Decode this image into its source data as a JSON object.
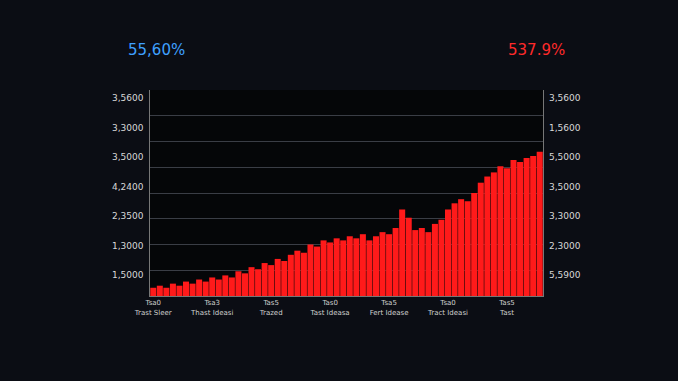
{
  "chart_data": {
    "type": "bar",
    "annotations": [
      {
        "text": "55,60%",
        "color": "#3fa0ff",
        "position": "top-left"
      },
      {
        "text": "537.9%",
        "color": "#ff2a2a",
        "position": "top-right"
      }
    ],
    "left_labels": [
      "3,5600",
      "3,3000",
      "3,5000",
      "4,2400",
      "2,3500",
      "1,3000",
      "1,5000"
    ],
    "right_labels": [
      "3,5600",
      "1,5600",
      "5,5000",
      "3,5000",
      "3,3000",
      "2,3000",
      "5,5900"
    ],
    "categories": [
      "Tsa0\nTrast Sleer",
      null,
      null,
      null,
      null,
      null,
      null,
      null,
      null,
      "Tsa3\nThast Ideasi",
      null,
      null,
      null,
      null,
      null,
      null,
      null,
      null,
      "Tas5\nTrazed",
      null,
      null,
      null,
      null,
      null,
      null,
      null,
      null,
      "Tas0\nTast Ideasa",
      null,
      null,
      null,
      null,
      null,
      null,
      null,
      null,
      "Tsa5\nFert Idease",
      null,
      null,
      null,
      null,
      null,
      null,
      null,
      null,
      "Tsa0\nTract Ideasi",
      null,
      null,
      null,
      null,
      null,
      null,
      null,
      null,
      "Tas5\nTast",
      null,
      null,
      null,
      null,
      null
    ],
    "values": [
      4,
      5,
      4,
      6,
      5,
      7,
      6,
      8,
      7,
      9,
      8,
      10,
      9,
      12,
      11,
      14,
      13,
      16,
      15,
      18,
      17,
      20,
      22,
      21,
      25,
      24,
      27,
      26,
      28,
      27,
      29,
      28,
      30,
      27,
      29,
      31,
      30,
      33,
      42,
      38,
      32,
      33,
      31,
      35,
      37,
      42,
      45,
      47,
      46,
      50,
      55,
      58,
      60,
      63,
      62,
      66,
      65,
      67,
      68,
      70
    ],
    "color": "#ff1a1a",
    "ylim": [
      0,
      100
    ],
    "yticks": [
      0,
      12.5,
      25,
      37.5,
      50,
      62.5,
      75,
      87.5,
      100
    ],
    "grid": true,
    "tick_labels": "x"
  }
}
